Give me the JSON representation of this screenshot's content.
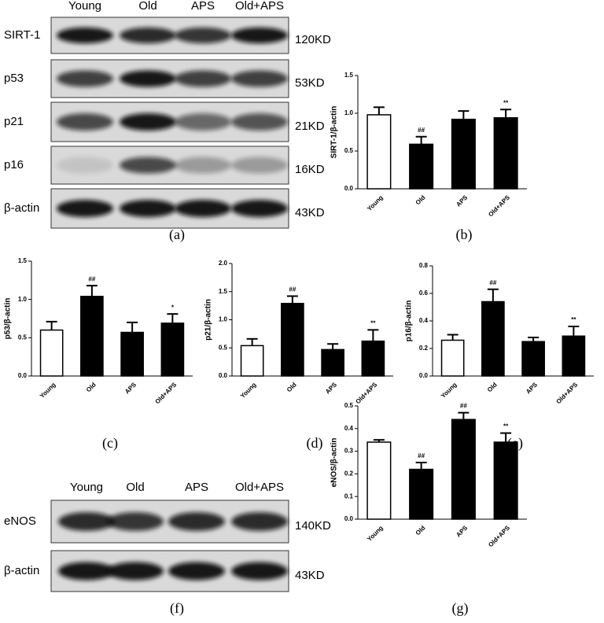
{
  "blots": [
    {
      "lanes": [
        "Young",
        "Old",
        "APS",
        "Old+APS"
      ],
      "rows": [
        {
          "label": "SIRT-1",
          "size": "120KD"
        },
        {
          "label": "p53",
          "size": "53KD"
        },
        {
          "label": "p21",
          "size": "21KD"
        },
        {
          "label": "p16",
          "size": "16KD"
        },
        {
          "label": "β-actin",
          "size": "43KD"
        }
      ],
      "caption": "(a)"
    },
    {
      "lanes": [
        "Young",
        "Old",
        "APS",
        "Old+APS"
      ],
      "rows": [
        {
          "label": "eNOS",
          "size": "140KD"
        },
        {
          "label": "β-actin",
          "size": "43KD"
        }
      ],
      "caption": "(f)"
    }
  ],
  "chart_data": [
    {
      "type": "bar",
      "caption": "(b)",
      "y_label": "SIRT-1/β-actin",
      "categories": [
        "Young",
        "Old",
        "APS",
        "Old+APS"
      ],
      "values": [
        0.98,
        0.59,
        0.92,
        0.94
      ],
      "errors": [
        0.1,
        0.1,
        0.11,
        0.11
      ],
      "annotations": [
        null,
        "##",
        null,
        "**"
      ],
      "colors": [
        "#ffffff",
        "#000000",
        "#000000",
        "#000000"
      ],
      "ylim": [
        0,
        1.5
      ],
      "yticks": [
        {
          "value": 0,
          "label": "0.0"
        },
        0.5,
        {
          "value": 1,
          "label": "1.0"
        },
        1.5
      ]
    },
    {
      "type": "bar",
      "caption": "(c)",
      "y_label": "p53/β-actin",
      "categories": [
        "Young",
        "Old",
        "APS",
        "Old+APS"
      ],
      "values": [
        0.6,
        1.04,
        0.57,
        0.69
      ],
      "errors": [
        0.11,
        0.14,
        0.13,
        0.12
      ],
      "annotations": [
        null,
        "##",
        null,
        "*"
      ],
      "colors": [
        "#ffffff",
        "#000000",
        "#000000",
        "#000000"
      ],
      "ylim": [
        0,
        1.5
      ],
      "yticks": [
        {
          "value": 0,
          "label": "0.0"
        },
        0.5,
        {
          "value": 1,
          "label": "1.0"
        },
        1.5
      ]
    },
    {
      "type": "bar",
      "caption": "(d)",
      "y_label": "p21/β-actin",
      "categories": [
        "Young",
        "Old",
        "APS",
        "Old+APS"
      ],
      "values": [
        0.54,
        1.29,
        0.47,
        0.62
      ],
      "errors": [
        0.12,
        0.13,
        0.1,
        0.2
      ],
      "annotations": [
        null,
        "##",
        null,
        "**"
      ],
      "colors": [
        "#ffffff",
        "#000000",
        "#000000",
        "#000000"
      ],
      "ylim": [
        0,
        2
      ],
      "yticks": [
        {
          "value": 0,
          "label": "0.0"
        },
        0.5,
        {
          "value": 1,
          "label": "1.0"
        },
        1.5,
        {
          "value": 2,
          "label": "2.0"
        }
      ]
    },
    {
      "type": "bar",
      "caption": "(e)",
      "y_label": "p16/β-actin",
      "categories": [
        "Young",
        "Old",
        "APS",
        "Old+APS"
      ],
      "values": [
        0.26,
        0.54,
        0.25,
        0.29
      ],
      "errors": [
        0.04,
        0.09,
        0.03,
        0.07
      ],
      "annotations": [
        null,
        "##",
        null,
        "**"
      ],
      "colors": [
        "#ffffff",
        "#000000",
        "#000000",
        "#000000"
      ],
      "ylim": [
        0,
        0.8
      ],
      "yticks": [
        {
          "value": 0,
          "label": "0.0"
        },
        0.2,
        0.4,
        0.6,
        0.8
      ]
    },
    {
      "type": "bar",
      "caption": "(g)",
      "y_label": "eNOS/β-actin",
      "categories": [
        "Young",
        "Old",
        "APS",
        "Old+APS"
      ],
      "values": [
        0.34,
        0.22,
        0.44,
        0.34
      ],
      "errors": [
        0.01,
        0.03,
        0.03,
        0.04
      ],
      "annotations": [
        null,
        "##",
        "##",
        "**"
      ],
      "colors": [
        "#ffffff",
        "#000000",
        "#000000",
        "#000000"
      ],
      "ylim": [
        0,
        0.5
      ],
      "yticks": [
        {
          "value": 0,
          "label": "0.0"
        },
        0.1,
        0.2,
        0.3,
        0.4,
        0.5
      ]
    }
  ]
}
